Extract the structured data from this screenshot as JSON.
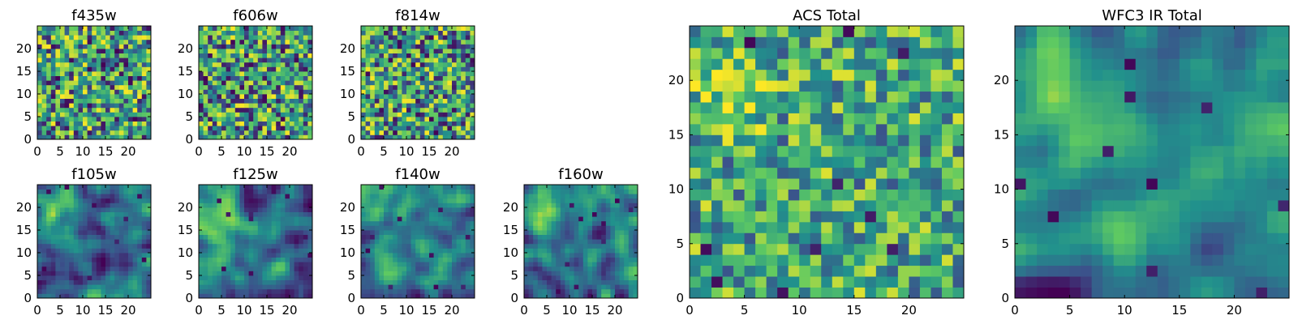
{
  "chart_data": {
    "type": "heatmap",
    "colormap": "viridis",
    "colormap_colors": [
      "#440154",
      "#3b528b",
      "#21918c",
      "#5ec962",
      "#fde725"
    ],
    "grid": false,
    "panels": [
      {
        "id": "f435w",
        "title": "f435w",
        "grid_size": [
          25,
          25
        ],
        "xlim": [
          0,
          25
        ],
        "ylim": [
          0,
          25
        ],
        "xticks": [
          0,
          5,
          10,
          15,
          20
        ],
        "yticks": [
          0,
          5,
          10,
          15,
          20
        ],
        "pattern": "noise",
        "seed": 11
      },
      {
        "id": "f606w",
        "title": "f606w",
        "grid_size": [
          25,
          25
        ],
        "xlim": [
          0,
          25
        ],
        "ylim": [
          0,
          25
        ],
        "xticks": [
          0,
          5,
          10,
          15,
          20
        ],
        "yticks": [
          0,
          5,
          10,
          15,
          20
        ],
        "pattern": "noise",
        "seed": 23
      },
      {
        "id": "f814w",
        "title": "f814w",
        "grid_size": [
          25,
          25
        ],
        "xlim": [
          0,
          25
        ],
        "ylim": [
          0,
          25
        ],
        "xticks": [
          0,
          5,
          10,
          15,
          20
        ],
        "yticks": [
          0,
          5,
          10,
          15,
          20
        ],
        "pattern": "noise",
        "seed": 37
      },
      {
        "id": "f105w",
        "title": "f105w",
        "grid_size": [
          25,
          25
        ],
        "xlim": [
          0,
          25
        ],
        "ylim": [
          0,
          25
        ],
        "xticks": [
          0,
          5,
          10,
          15,
          20
        ],
        "yticks": [
          0,
          5,
          10,
          15,
          20
        ],
        "pattern": "smooth",
        "seed": 41
      },
      {
        "id": "f125w",
        "title": "f125w",
        "grid_size": [
          25,
          25
        ],
        "xlim": [
          0,
          25
        ],
        "ylim": [
          0,
          25
        ],
        "xticks": [
          0,
          5,
          10,
          15,
          20
        ],
        "yticks": [
          0,
          5,
          10,
          15,
          20
        ],
        "pattern": "smooth",
        "seed": 53
      },
      {
        "id": "f140w",
        "title": "f140w",
        "grid_size": [
          25,
          25
        ],
        "xlim": [
          0,
          25
        ],
        "ylim": [
          0,
          25
        ],
        "xticks": [
          0,
          5,
          10,
          15,
          20
        ],
        "yticks": [
          0,
          5,
          10,
          15,
          20
        ],
        "pattern": "smooth",
        "seed": 67
      },
      {
        "id": "f160w",
        "title": "f160w",
        "grid_size": [
          25,
          25
        ],
        "xlim": [
          0,
          25
        ],
        "ylim": [
          0,
          25
        ],
        "xticks": [
          0,
          5,
          10,
          15,
          20
        ],
        "yticks": [
          0,
          5,
          10,
          15,
          20
        ],
        "pattern": "smooth",
        "seed": 79
      },
      {
        "id": "acs_total",
        "title": "ACS Total",
        "grid_size": [
          25,
          25
        ],
        "xlim": [
          0,
          25
        ],
        "ylim": [
          0,
          25
        ],
        "xticks": [
          0,
          5,
          10,
          15,
          20
        ],
        "yticks": [
          0,
          5,
          10,
          15,
          20
        ],
        "pattern": "noise-bright",
        "seed": 89
      },
      {
        "id": "wfc3_ir_total",
        "title": "WFC3 IR Total",
        "grid_size": [
          25,
          25
        ],
        "xlim": [
          0,
          25
        ],
        "ylim": [
          0,
          25
        ],
        "xticks": [
          0,
          5,
          10,
          15,
          20
        ],
        "yticks": [
          0,
          5,
          10,
          15,
          20
        ],
        "pattern": "smooth",
        "seed": 97
      }
    ]
  }
}
